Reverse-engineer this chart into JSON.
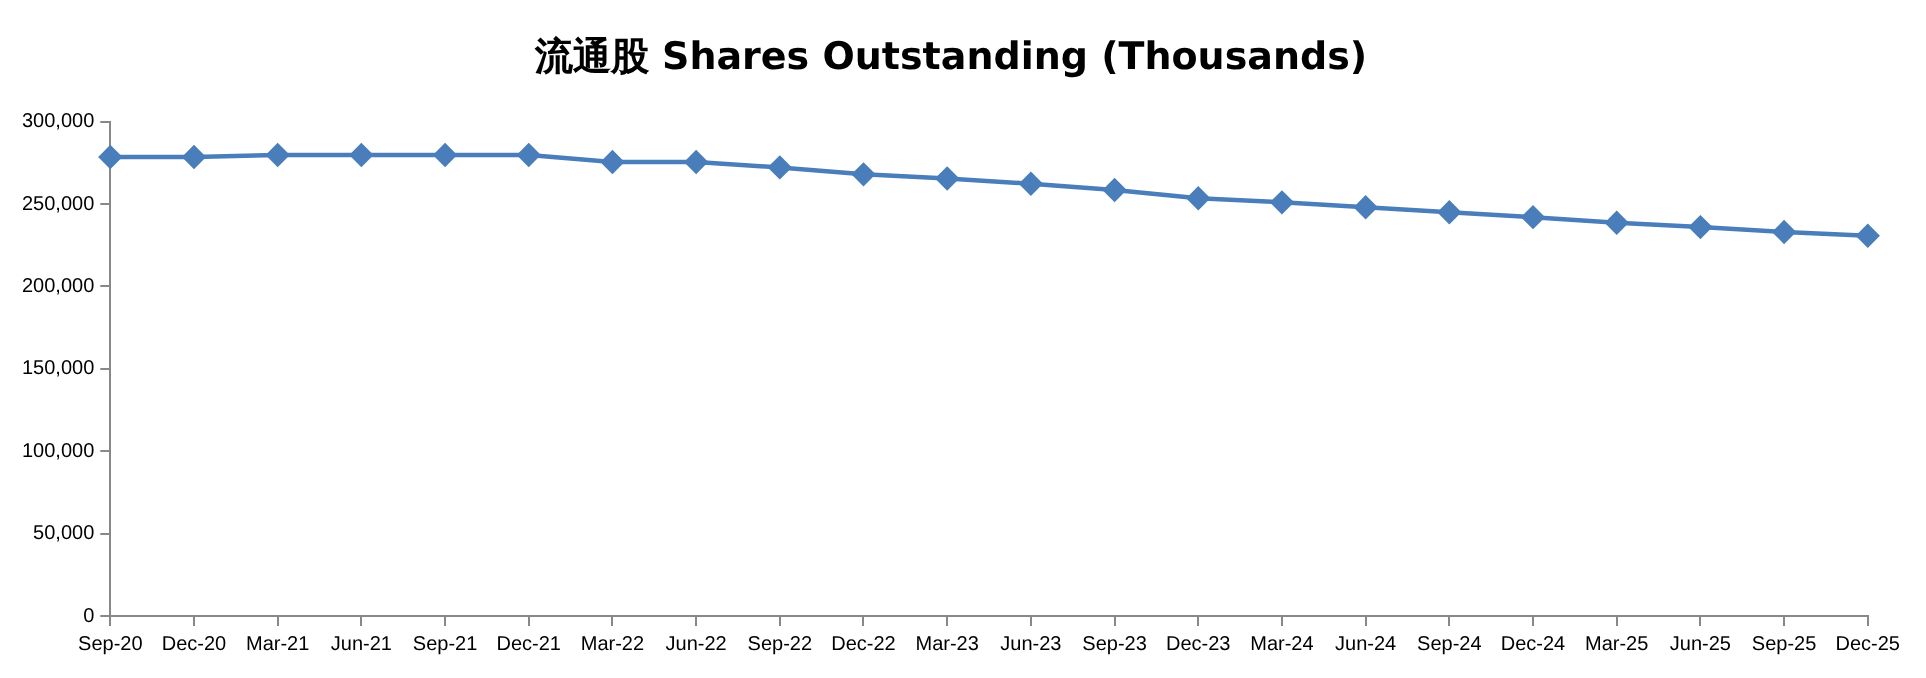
{
  "chart_data": {
    "type": "line",
    "title": "流通股 Shares Outstanding (Thousands)",
    "categories": [
      "Sep-20",
      "Dec-20",
      "Mar-21",
      "Jun-21",
      "Sep-21",
      "Dec-21",
      "Mar-22",
      "Jun-22",
      "Sep-22",
      "Dec-22",
      "Mar-23",
      "Jun-23",
      "Sep-23",
      "Dec-23",
      "Mar-24",
      "Jun-24",
      "Sep-24",
      "Dec-24",
      "Mar-25",
      "Jun-25",
      "Sep-25",
      "Dec-25"
    ],
    "series": [
      {
        "color": "#4a7ebb",
        "values": [
          278500,
          278500,
          279700,
          279700,
          279700,
          279700,
          275500,
          275500,
          272200,
          268000,
          265500,
          262300,
          258500,
          253500,
          251000,
          248000,
          245000,
          242000,
          238600,
          236000,
          233000,
          230700
        ]
      }
    ],
    "ylim": [
      0,
      300000
    ],
    "yticks": [
      {
        "value": 0,
        "label": "0"
      },
      {
        "value": 50000,
        "label": "50,000"
      },
      {
        "value": 100000,
        "label": "100,000"
      },
      {
        "value": 150000,
        "label": "150,000"
      },
      {
        "value": 200000,
        "label": "200,000"
      },
      {
        "value": 250000,
        "label": "250,000"
      },
      {
        "value": 300000,
        "label": "300,000"
      }
    ],
    "grid": false,
    "legend": false,
    "marker": "diamond",
    "line_style": "solid"
  }
}
